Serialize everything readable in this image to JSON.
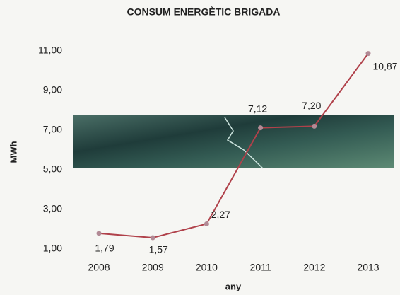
{
  "chart_data": {
    "type": "line",
    "title": "CONSUM ENERGÈTIC BRIGADA",
    "x_label": "any",
    "y_label": "MWh",
    "categories": [
      "2008",
      "2009",
      "2010",
      "2011",
      "2012",
      "2013"
    ],
    "values": [
      1.79,
      1.57,
      2.27,
      7.12,
      7.2,
      10.87
    ],
    "value_labels": [
      "1,79",
      "1,57",
      "2,27",
      "7,12",
      "7,20",
      "10,87"
    ],
    "color": "#b0414a",
    "marker_color": "#b28a95",
    "ylim": [
      1,
      11
    ],
    "yticks": [
      {
        "value": 1,
        "label": "1,00"
      },
      {
        "value": 3,
        "label": "3,00"
      },
      {
        "value": 5,
        "label": "5,00"
      },
      {
        "value": 7,
        "label": "7,00"
      },
      {
        "value": 9,
        "label": "9,00"
      },
      {
        "value": 11,
        "label": "11,00"
      }
    ],
    "grid": false
  }
}
